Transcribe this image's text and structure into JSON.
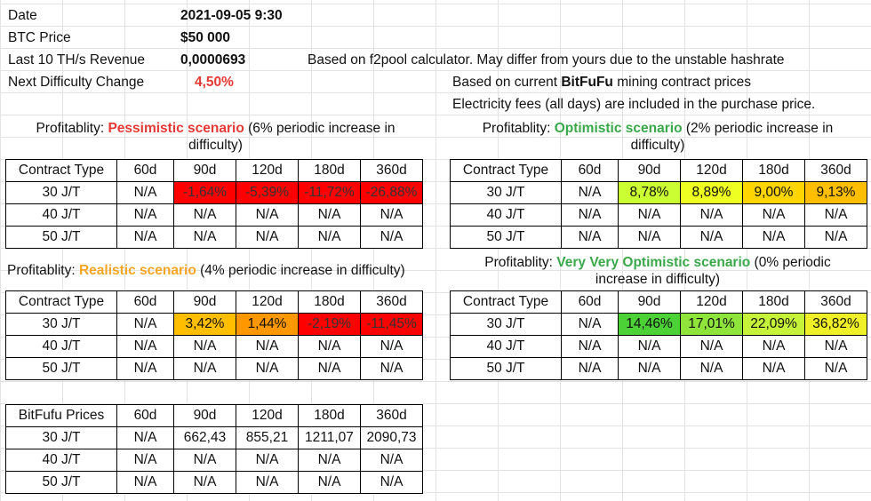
{
  "info": {
    "date_label": "Date",
    "date_value": "2021-09-05 9:30",
    "btc_label": "BTC Price",
    "btc_value": "$50 000",
    "revenue_label": "Last 10 TH/s Revenue",
    "revenue_value": "0,0000693",
    "revenue_note": "Based on f2pool calculator. May differ from yours due to the unstable hashrate",
    "difficulty_label": "Next Difficulty Change",
    "difficulty_value": "4,50%",
    "contract_note_prefix": "Based on current ",
    "contract_note_brand": "BitFuFu",
    "contract_note_suffix": " mining contract prices",
    "electricity_note": "Electricity fees (all days) are included in the purchase price."
  },
  "columns": [
    "60d",
    "90d",
    "120d",
    "180d",
    "360d"
  ],
  "pessimistic": {
    "title_prefix": "Profitablity: ",
    "title_name": "Pessimistic scenario",
    "title_suffix": " (6% periodic increase in difficulty)",
    "header": "Contract Type",
    "rows": [
      {
        "type": "30 J/T",
        "values": [
          "N/A",
          "-1,64%",
          "-5,39%",
          "-11,72%",
          "-26,88%"
        ]
      },
      {
        "type": "40 J/T",
        "values": [
          "N/A",
          "N/A",
          "N/A",
          "N/A",
          "N/A"
        ]
      },
      {
        "type": "50 J/T",
        "values": [
          "N/A",
          "N/A",
          "N/A",
          "N/A",
          "N/A"
        ]
      }
    ]
  },
  "optimistic": {
    "title_prefix": "Profitablity: ",
    "title_name": "Optimistic scenario",
    "title_suffix": " (2% periodic increase in difficulty)",
    "header": "Contract Type",
    "rows": [
      {
        "type": "30 J/T",
        "values": [
          "N/A",
          "8,78%",
          "8,89%",
          "9,00%",
          "9,13%"
        ]
      },
      {
        "type": "40 J/T",
        "values": [
          "N/A",
          "N/A",
          "N/A",
          "N/A",
          "N/A"
        ]
      },
      {
        "type": "50 J/T",
        "values": [
          "N/A",
          "N/A",
          "N/A",
          "N/A",
          "N/A"
        ]
      }
    ]
  },
  "realistic": {
    "title_prefix": "Profitablity: ",
    "title_name": "Realistic scenario",
    "title_suffix": " (4% periodic increase in difficulty)",
    "header": "Contract Type",
    "rows": [
      {
        "type": "30 J/T",
        "values": [
          "N/A",
          "3,42%",
          "1,44%",
          "-2,19%",
          "-11,45%"
        ]
      },
      {
        "type": "40 J/T",
        "values": [
          "N/A",
          "N/A",
          "N/A",
          "N/A",
          "N/A"
        ]
      },
      {
        "type": "50 J/T",
        "values": [
          "N/A",
          "N/A",
          "N/A",
          "N/A",
          "N/A"
        ]
      }
    ]
  },
  "very_optimistic": {
    "title_prefix": "Profitablity: ",
    "title_name": "Very Very Optimistic scenario",
    "title_suffix": " (0% periodic increase in difficulty)",
    "header": "Contract Type",
    "rows": [
      {
        "type": "30 J/T",
        "values": [
          "N/A",
          "14,46%",
          "17,01%",
          "22,09%",
          "36,82%"
        ]
      },
      {
        "type": "40 J/T",
        "values": [
          "N/A",
          "N/A",
          "N/A",
          "N/A",
          "N/A"
        ]
      },
      {
        "type": "50 J/T",
        "values": [
          "N/A",
          "N/A",
          "N/A",
          "N/A",
          "N/A"
        ]
      }
    ]
  },
  "prices": {
    "header": "BitFufu Prices",
    "rows": [
      {
        "type": "30 J/T",
        "values": [
          "N/A",
          "662,43",
          "855,21",
          "1211,07",
          "2090,73"
        ]
      },
      {
        "type": "40 J/T",
        "values": [
          "N/A",
          "N/A",
          "N/A",
          "N/A",
          "N/A"
        ]
      },
      {
        "type": "50 J/T",
        "values": [
          "N/A",
          "N/A",
          "N/A",
          "N/A",
          "N/A"
        ]
      }
    ]
  },
  "colors": {
    "pessimistic_title": "#e53935",
    "optimistic_title": "#3aa84a",
    "realistic_title": "#f6a524",
    "negative_cell": "#ff0000",
    "positive_high": "#4cd137"
  }
}
